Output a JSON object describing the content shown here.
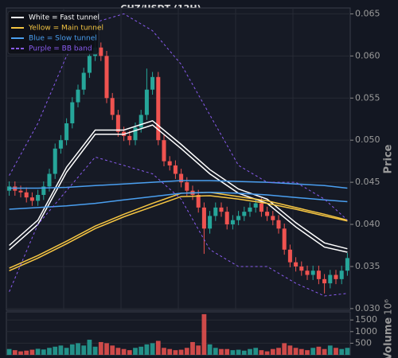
{
  "chart_data": {
    "type": "candlestick",
    "title": "CHZ/USDT (12H)",
    "y_label": "Price",
    "volume_label": "Volume",
    "volume_offset": "10⁶",
    "up_color": "#26a69a",
    "down_color": "#ef5350",
    "grid": true,
    "legend": "upper left",
    "ylim": [
      0.0298,
      0.0657
    ],
    "yticks": [
      {
        "value": 0.03,
        "label": "0.030"
      },
      0.035,
      {
        "value": 0.04,
        "label": "0.040"
      },
      0.045,
      {
        "value": 0.05,
        "label": "0.050"
      },
      0.055,
      {
        "value": 0.06,
        "label": "0.060"
      },
      0.065
    ],
    "volume_ylim": [
      0,
      1850
    ],
    "volume_yticks": [
      500,
      1000,
      1500
    ],
    "open": [
      0.044,
      0.0445,
      0.044,
      0.0438,
      0.0432,
      0.0428,
      0.0435,
      0.0445,
      0.046,
      0.049,
      0.05,
      0.052,
      0.0545,
      0.056,
      0.058,
      0.06,
      0.061,
      0.06,
      0.055,
      0.053,
      0.051,
      0.0505,
      0.05,
      0.0515,
      0.053,
      0.056,
      0.0575,
      0.05,
      0.0475,
      0.047,
      0.046,
      0.045,
      0.044,
      0.0435,
      0.042,
      0.0395,
      0.041,
      0.042,
      0.0415,
      0.04,
      0.0405,
      0.041,
      0.0415,
      0.042,
      0.0425,
      0.0415,
      0.041,
      0.0405,
      0.0395,
      0.037,
      0.0355,
      0.035,
      0.0345,
      0.034,
      0.0345,
      0.0335,
      0.033,
      0.034,
      0.0335,
      0.0345
    ],
    "high": [
      0.0451,
      0.0451,
      0.0446,
      0.0444,
      0.0438,
      0.0441,
      0.0451,
      0.0466,
      0.0496,
      0.0506,
      0.0526,
      0.0551,
      0.0566,
      0.0586,
      0.0606,
      0.0635,
      0.0616,
      0.0606,
      0.0556,
      0.0536,
      0.0516,
      0.0511,
      0.0521,
      0.0536,
      0.0585,
      0.0581,
      0.0581,
      0.0506,
      0.0481,
      0.0476,
      0.0466,
      0.0456,
      0.0446,
      0.0441,
      0.0426,
      0.0416,
      0.0426,
      0.0426,
      0.0421,
      0.0411,
      0.0416,
      0.0421,
      0.0426,
      0.0431,
      0.0431,
      0.0421,
      0.0416,
      0.0411,
      0.0401,
      0.0376,
      0.0361,
      0.0356,
      0.0351,
      0.0351,
      0.0351,
      0.0341,
      0.0346,
      0.0346,
      0.0351,
      0.0366
    ],
    "low": [
      0.0434,
      0.0434,
      0.0432,
      0.0426,
      0.0422,
      0.0422,
      0.0429,
      0.0439,
      0.0454,
      0.0484,
      0.0494,
      0.0514,
      0.0539,
      0.0554,
      0.0574,
      0.0594,
      0.0594,
      0.0544,
      0.0524,
      0.0504,
      0.0499,
      0.0494,
      0.0494,
      0.0509,
      0.0524,
      0.0554,
      0.0494,
      0.0469,
      0.0464,
      0.0454,
      0.0444,
      0.0434,
      0.0429,
      0.0414,
      0.0365,
      0.0389,
      0.0404,
      0.0409,
      0.0394,
      0.0394,
      0.0399,
      0.0404,
      0.0409,
      0.0414,
      0.0409,
      0.0404,
      0.0399,
      0.0389,
      0.0364,
      0.0349,
      0.0344,
      0.0339,
      0.0334,
      0.0334,
      0.0329,
      0.0318,
      0.0324,
      0.0329,
      0.0329,
      0.0339
    ],
    "close": [
      0.0445,
      0.044,
      0.0438,
      0.0432,
      0.0428,
      0.0435,
      0.0445,
      0.046,
      0.049,
      0.05,
      0.052,
      0.0545,
      0.056,
      0.058,
      0.06,
      0.061,
      0.06,
      0.055,
      0.053,
      0.051,
      0.0505,
      0.05,
      0.0515,
      0.053,
      0.056,
      0.0575,
      0.05,
      0.0475,
      0.047,
      0.046,
      0.045,
      0.044,
      0.0435,
      0.042,
      0.0395,
      0.041,
      0.042,
      0.0415,
      0.04,
      0.0405,
      0.041,
      0.0415,
      0.042,
      0.0425,
      0.0415,
      0.041,
      0.0405,
      0.0395,
      0.037,
      0.0355,
      0.035,
      0.0345,
      0.034,
      0.0345,
      0.0335,
      0.033,
      0.034,
      0.0335,
      0.0345,
      0.036
    ],
    "volume": [
      250,
      200,
      150,
      180,
      220,
      260,
      230,
      300,
      350,
      400,
      300,
      450,
      500,
      400,
      650,
      350,
      550,
      500,
      400,
      300,
      250,
      200,
      300,
      350,
      450,
      500,
      600,
      300,
      250,
      200,
      220,
      300,
      550,
      400,
      1750,
      450,
      300,
      250,
      250,
      200,
      220,
      180,
      250,
      300,
      200,
      150,
      250,
      300,
      500,
      400,
      300,
      250,
      200,
      300,
      350,
      250,
      400,
      300,
      250,
      300
    ],
    "line_x": [
      0,
      5,
      10,
      15,
      20,
      25,
      30,
      35,
      40,
      45,
      50,
      55,
      59
    ],
    "overlays": [
      {
        "name": "White = Fast tunnel",
        "color": "#ffffff",
        "dashed": false,
        "lines": [
          [
            0.0375,
            0.0405,
            0.0468,
            0.0512,
            0.0512,
            0.0523,
            0.0495,
            0.0465,
            0.0442,
            0.043,
            0.0402,
            0.0378,
            0.0371
          ],
          [
            0.037,
            0.04,
            0.0462,
            0.0507,
            0.0507,
            0.0518,
            0.049,
            0.046,
            0.0437,
            0.0425,
            0.0397,
            0.0373,
            0.0367
          ]
        ]
      },
      {
        "name": "Yellow = Main tunnel",
        "color": "#f5c542",
        "dashed": false,
        "lines": [
          [
            0.0348,
            0.0363,
            0.038,
            0.0398,
            0.0412,
            0.0425,
            0.0437,
            0.0438,
            0.0433,
            0.0428,
            0.042,
            0.0412,
            0.0405
          ],
          [
            0.0345,
            0.036,
            0.0377,
            0.0395,
            0.0409,
            0.0421,
            0.0433,
            0.0434,
            0.043,
            0.0425,
            0.0418,
            0.041,
            0.0404
          ]
        ]
      },
      {
        "name": "Blue = Slow tunnel",
        "color": "#4a9ff0",
        "dashed": false,
        "lines": [
          [
            0.0443,
            0.0443,
            0.0444,
            0.0446,
            0.0448,
            0.045,
            0.0452,
            0.0452,
            0.0451,
            0.045,
            0.0448,
            0.0446,
            0.0443
          ],
          [
            0.0418,
            0.042,
            0.0422,
            0.0425,
            0.0429,
            0.0433,
            0.0437,
            0.0438,
            0.0437,
            0.0435,
            0.0432,
            0.0429,
            0.0427
          ]
        ]
      },
      {
        "name": "Purple = BB band",
        "color": "#8a5cf0",
        "dashed": true,
        "lines": [
          [
            0.0458,
            0.052,
            0.06,
            0.064,
            0.065,
            0.063,
            0.059,
            0.053,
            0.047,
            0.045,
            0.045,
            0.043,
            0.0405
          ],
          [
            0.032,
            0.04,
            0.044,
            0.048,
            0.047,
            0.046,
            0.043,
            0.037,
            0.035,
            0.035,
            0.033,
            0.0315,
            0.0318
          ]
        ]
      }
    ]
  }
}
